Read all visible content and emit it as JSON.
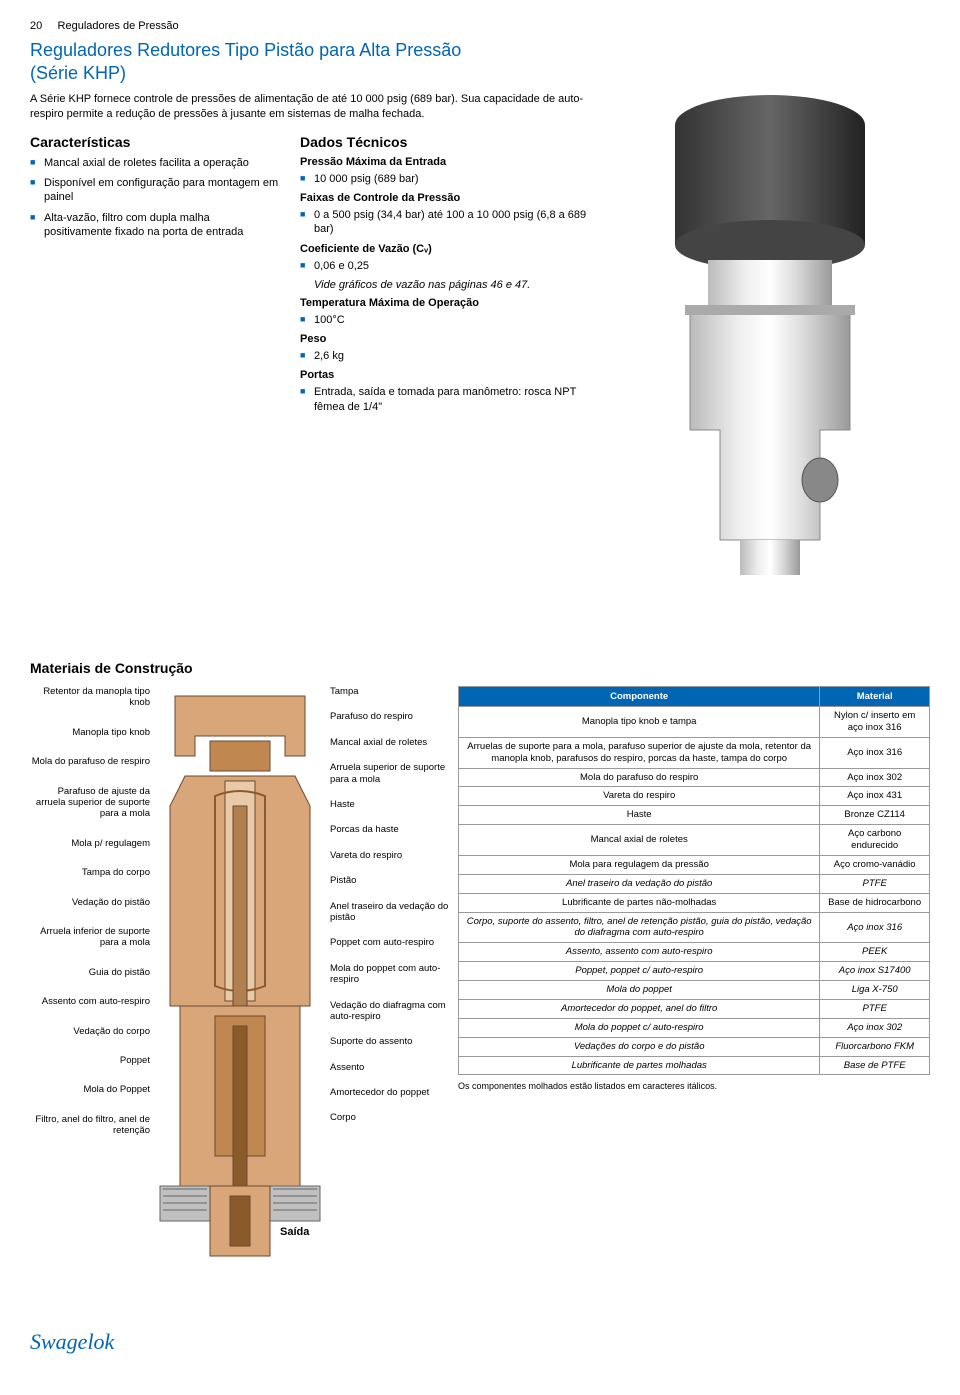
{
  "colors": {
    "brand_blue": "#0066b3",
    "text": "#000000",
    "table_header_bg": "#0066b3",
    "table_header_fg": "#ffffff",
    "table_border": "#999999",
    "diagram_fill": "#d9a679",
    "diagram_stroke": "#6b4a2e"
  },
  "header": {
    "page_num": "20",
    "section": "Reguladores de Pressão"
  },
  "title": {
    "line1": "Reguladores Redutores Tipo Pistão para Alta Pressão",
    "line2": "(Série KHP)"
  },
  "intro": "A Série KHP fornece controle de pressões de alimentação de até 10 000 psig (689 bar). Sua capacidade de auto-respiro permite a redução de pressões à jusante em sistemas de malha fechada.",
  "features": {
    "heading": "Características",
    "items": [
      "Mancal axial de roletes facilita a operação",
      "Disponível em configuração para montagem em painel",
      "Alta-vazão, filtro com dupla malha positivamente fixado na porta de entrada"
    ]
  },
  "tech": {
    "heading": "Dados Técnicos",
    "pmax_label": "Pressão Máxima da Entrada",
    "pmax_val": "10 000 psig (689 bar)",
    "range_label": "Faixas de Controle da Pressão",
    "range_val": "0 a 500 psig (34,4 bar) até 100 a 10 000 psig (6,8 a 689 bar)",
    "cv_label": "Coeficiente de Vazão (Cᵥ)",
    "cv_val": "0,06 e 0,25",
    "cv_note": "Vide gráficos de vazão nas páginas 46 e 47.",
    "temp_label": "Temperatura Máxima de Operação",
    "temp_val": "100°C",
    "peso_label": "Peso",
    "peso_val": "2,6 kg",
    "portas_label": "Portas",
    "portas_val": "Entrada, saída e tomada para manômetro: rosca NPT fêmea de 1/4\""
  },
  "materials": {
    "heading": "Materiais de Construção",
    "labels_left": [
      "Retentor da manopla tipo knob",
      "Manopla tipo knob",
      "Mola do parafuso de respiro",
      "Parafuso de ajuste da arruela superior de suporte para a mola",
      "Mola p/ regulagem",
      "Tampa do corpo",
      "Vedação do pistão",
      "Arruela inferior de suporte para a mola",
      "Guia do pistão",
      "Assento com auto-respiro",
      "Vedação do corpo",
      "Poppet",
      "Mola do Poppet",
      "Filtro, anel do filtro, anel de retenção"
    ],
    "labels_right": [
      "Tampa",
      "Parafuso do respiro",
      "Mancal axial de roletes",
      "Arruela superior de suporte para a mola",
      "Haste",
      "Porcas da haste",
      "Vareta do respiro",
      "Pistão",
      "Anel traseiro da vedação do pistão",
      "Poppet com auto-respiro",
      "Mola do poppet com auto-respiro",
      "Vedação do diafragma com auto-respiro",
      "Suporte do assento",
      "Assento",
      "Amortecedor do poppet",
      "Corpo"
    ],
    "saida": "Saída",
    "table": {
      "col1": "Componente",
      "col2": "Material",
      "rows": [
        {
          "c": "Manopla tipo knob e tampa",
          "m": "Nylon c/ inserto em aço inox 316",
          "i": false
        },
        {
          "c": "Arruelas de suporte para a mola, parafuso superior de ajuste da mola, retentor da manopla knob, parafusos do respiro, porcas da haste, tampa do corpo",
          "m": "Aço inox 316",
          "i": false
        },
        {
          "c": "Mola do parafuso do respiro",
          "m": "Aço inox 302",
          "i": false
        },
        {
          "c": "Vareta do respiro",
          "m": "Aço inox 431",
          "i": false
        },
        {
          "c": "Haste",
          "m": "Bronze CZ114",
          "i": false
        },
        {
          "c": "Mancal axial de roletes",
          "m": "Aço carbono endurecido",
          "i": false
        },
        {
          "c": "Mola para regulagem da pressão",
          "m": "Aço cromo-vanádio",
          "i": false
        },
        {
          "c": "Anel traseiro da vedação do pistão",
          "m": "PTFE",
          "i": true
        },
        {
          "c": "Lubrificante de partes não-molhadas",
          "m": "Base de hidrocarbono",
          "i": false
        },
        {
          "c": "Corpo, suporte do assento, filtro, anel de retenção pistão, guia do pistão, vedação do diafragma com auto-respiro",
          "m": "Aço inox 316",
          "i": true
        },
        {
          "c": "Assento, assento com auto-respiro",
          "m": "PEEK",
          "i": true
        },
        {
          "c": "Poppet, poppet c/ auto-respiro",
          "m": "Aço inox S17400",
          "i": true
        },
        {
          "c": "Mola do poppet",
          "m": "Liga X-750",
          "i": true
        },
        {
          "c": "Amortecedor do poppet, anel do filtro",
          "m": "PTFE",
          "i": true
        },
        {
          "c": "Mola do poppet c/ auto-respiro",
          "m": "Aço inox 302",
          "i": true
        },
        {
          "c": "Vedações do corpo e do pistão",
          "m": "Fluorcarbono FKM",
          "i": true
        },
        {
          "c": "Lubrificante de partes molhadas",
          "m": "Base de PTFE",
          "i": true
        }
      ],
      "note": "Os componentes molhados estão listados em caracteres itálicos."
    }
  },
  "logo": "Swagelok"
}
